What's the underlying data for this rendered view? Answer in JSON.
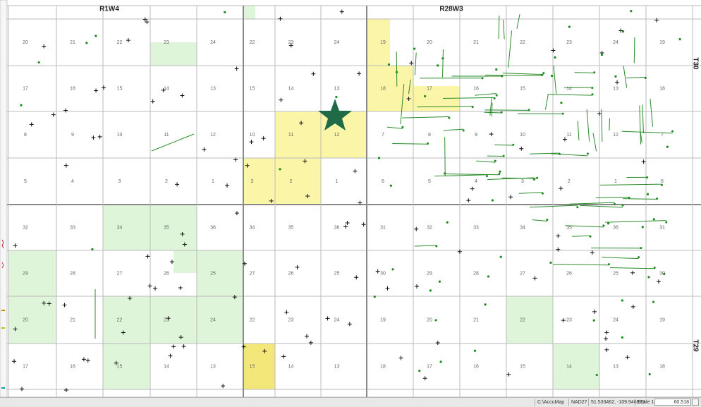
{
  "map": {
    "range_labels": [
      "R1W4",
      "R28W3"
    ],
    "township_labels": [
      "T30",
      "T29"
    ],
    "sections": [
      [
        20,
        21,
        22,
        23,
        24,
        22,
        23,
        24,
        19,
        20,
        21,
        22,
        23,
        24,
        19
      ],
      [
        17,
        16,
        15,
        14,
        13,
        15,
        14,
        13,
        18,
        17,
        16,
        15,
        14,
        13,
        18
      ],
      [
        8,
        9,
        10,
        11,
        12,
        10,
        11,
        12,
        7,
        8,
        9,
        10,
        11,
        12,
        7
      ],
      [
        5,
        4,
        3,
        2,
        1,
        3,
        2,
        1,
        6,
        5,
        4,
        3,
        2,
        1,
        6
      ],
      [
        32,
        33,
        34,
        35,
        36,
        34,
        35,
        36,
        31,
        32,
        33,
        34,
        35,
        36,
        31
      ],
      [
        29,
        28,
        27,
        26,
        25,
        27,
        26,
        25,
        30,
        29,
        28,
        27,
        26,
        25,
        30
      ],
      [
        20,
        21,
        22,
        23,
        24,
        22,
        23,
        24,
        19,
        20,
        21,
        22,
        23,
        24,
        19
      ],
      [
        17,
        16,
        15,
        14,
        13,
        15,
        14,
        13,
        18,
        17,
        16,
        15,
        14,
        13,
        18
      ]
    ]
  },
  "status_bar": {
    "path": "C:\\AccuMap",
    "datum": "NAD27",
    "coordinates": "51.533462, -109.946879",
    "scale_label": "Scale 1:",
    "scale_value": "60,518"
  }
}
